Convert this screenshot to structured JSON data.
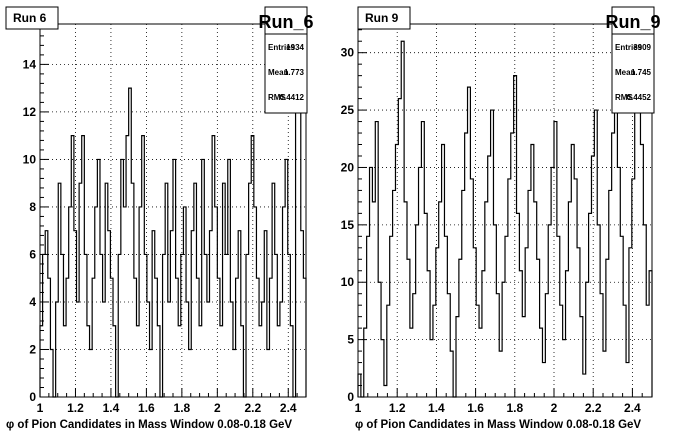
{
  "chart_data": [
    {
      "type": "histogram",
      "pad_title": "Run 6",
      "stats": {
        "name": "Run_6",
        "entries_label": "Entries",
        "entries": "1934",
        "mean_label": "Mean",
        "mean": "1.773",
        "rms_label": "RMS",
        "rms": "0.4412"
      },
      "xlabel": "φ of Pion Candidates in Mass Window 0.08-0.18 GeV",
      "xlim": [
        1.0,
        2.5
      ],
      "ylim": [
        0,
        15.7
      ],
      "xticks": [
        1,
        1.2,
        1.4,
        1.6,
        1.8,
        2,
        2.2,
        2.4
      ],
      "xtick_labels": [
        "1",
        "1.2",
        "1.4",
        "1.6",
        "1.8",
        "2",
        "2.2",
        "2.4"
      ],
      "yticks": [
        0,
        2,
        4,
        6,
        8,
        10,
        12,
        14
      ],
      "ytick_labels": [
        "0",
        "2",
        "4",
        "6",
        "8",
        "10",
        "12",
        "14"
      ],
      "grid": true,
      "stats_position": "top-right",
      "bin_edges_range": [
        1.0,
        2.5
      ],
      "values": [
        3,
        6,
        7,
        5,
        2,
        0,
        4,
        9,
        6,
        3,
        5,
        8,
        11,
        7,
        4,
        9,
        11,
        6,
        3,
        2,
        5,
        8,
        10,
        6,
        4,
        9,
        7,
        5,
        3,
        0,
        6,
        10,
        8,
        11,
        13,
        9,
        5,
        3,
        8,
        11,
        6,
        4,
        2,
        7,
        5,
        3,
        0,
        6,
        9,
        4,
        7,
        10,
        5,
        3,
        6,
        8,
        4,
        2,
        7,
        9,
        5,
        3,
        10,
        6,
        4,
        7,
        11,
        8,
        5,
        3,
        9,
        6,
        10,
        4,
        2,
        5,
        7,
        3,
        0,
        6,
        9,
        11,
        8,
        5,
        3,
        4,
        7,
        2,
        5,
        9,
        6,
        3,
        4,
        8,
        10,
        6,
        3,
        0,
        14,
        12,
        7,
        5
      ]
    },
    {
      "type": "histogram",
      "pad_title": "Run 9",
      "stats": {
        "name": "Run_9",
        "entries_label": "Entries",
        "entries": "3909",
        "mean_label": "Mean",
        "mean": "1.745",
        "rms_label": "RMS",
        "rms": "0.4452"
      },
      "xlabel": "φ of Pion Candidates in Mass Window 0.08-0.18 GeV",
      "xlim": [
        1.0,
        2.5
      ],
      "ylim": [
        0,
        32.5
      ],
      "xticks": [
        1,
        1.2,
        1.4,
        1.6,
        1.8,
        2,
        2.2,
        2.4
      ],
      "xtick_labels": [
        "1",
        "1.2",
        "1.4",
        "1.6",
        "1.8",
        "2",
        "2.2",
        "2.4"
      ],
      "yticks": [
        0,
        5,
        10,
        15,
        20,
        25,
        30
      ],
      "ytick_labels": [
        "0",
        "5",
        "10",
        "15",
        "20",
        "25",
        "30"
      ],
      "grid": true,
      "stats_position": "top-right",
      "bin_edges_range": [
        1.0,
        2.5
      ],
      "values": [
        2,
        0,
        6,
        14,
        20,
        17,
        24,
        10,
        5,
        1,
        8,
        14,
        18,
        22,
        26,
        31,
        17,
        12,
        6,
        9,
        15,
        20,
        24,
        16,
        11,
        5,
        8,
        13,
        17,
        22,
        14,
        9,
        4,
        0,
        7,
        12,
        18,
        23,
        27,
        19,
        13,
        8,
        6,
        11,
        17,
        21,
        25,
        15,
        9,
        4,
        10,
        14,
        19,
        23,
        28,
        16,
        11,
        7,
        13,
        18,
        22,
        17,
        12,
        6,
        3,
        9,
        15,
        20,
        24,
        14,
        8,
        5,
        11,
        17,
        22,
        19,
        13,
        7,
        2,
        10,
        16,
        21,
        25,
        15,
        9,
        4,
        12,
        18,
        23,
        28,
        20,
        14,
        8,
        3,
        13,
        19,
        25,
        30,
        22,
        15,
        8,
        11
      ]
    }
  ]
}
